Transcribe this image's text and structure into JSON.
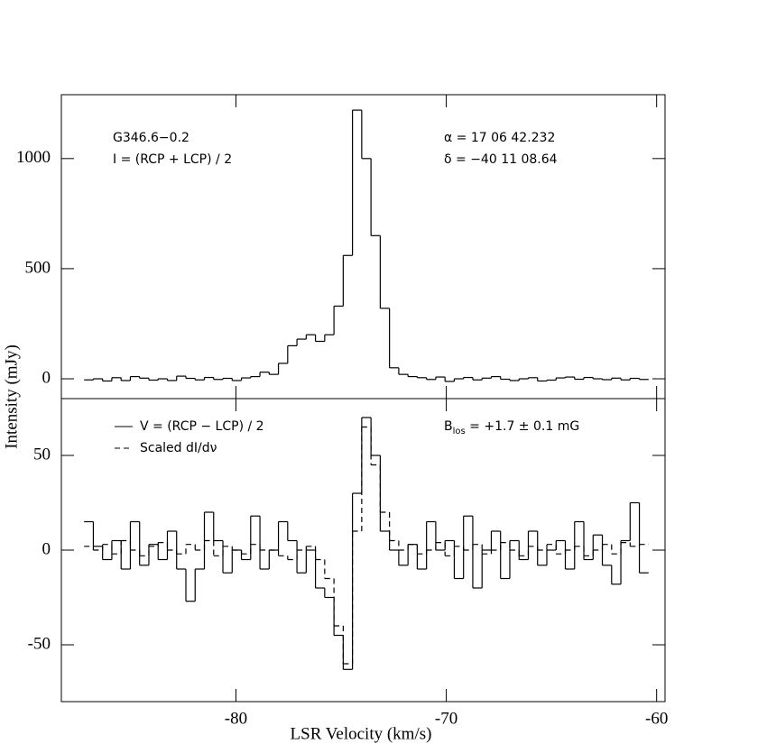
{
  "chart_data": [
    {
      "type": "step",
      "ylabel": "Intensity (mJy)",
      "annotations": [
        "G346.6−0.2",
        "I = (RCP + LCP) / 2",
        "α = 17 06 42.232",
        "δ = −40 11 08.64"
      ],
      "xlim": [
        -88.3,
        -59.6
      ],
      "ylim": [
        -90,
        1290
      ],
      "yticks": [
        0,
        500,
        1000
      ],
      "x": [
        -87.0,
        -86.56,
        -86.12,
        -85.68,
        -85.24,
        -84.8,
        -84.36,
        -83.92,
        -83.48,
        -83.04,
        -82.6,
        -82.16,
        -81.72,
        -81.28,
        -80.84,
        -80.4,
        -79.96,
        -79.52,
        -79.08,
        -78.64,
        -78.2,
        -77.76,
        -77.32,
        -76.88,
        -76.44,
        -76.0,
        -75.56,
        -75.12,
        -74.68,
        -74.24,
        -73.8,
        -73.36,
        -72.92,
        -72.48,
        -72.04,
        -71.6,
        -71.16,
        -70.72,
        -70.28,
        -69.84,
        -69.4,
        -68.96,
        -68.52,
        -68.08,
        -67.64,
        -67.2,
        -66.76,
        -66.32,
        -65.88,
        -65.44,
        -65.0,
        -64.56,
        -64.12,
        -63.68,
        -63.24,
        -62.8,
        -62.36,
        -61.92,
        -61.48,
        -61.04,
        -60.6
      ],
      "series": [
        {
          "color": "#000000",
          "dash": "solid",
          "values": [
            -5,
            0,
            -10,
            5,
            -8,
            10,
            3,
            -6,
            0,
            -8,
            12,
            2,
            -5,
            6,
            -3,
            2,
            -8,
            4,
            10,
            30,
            20,
            70,
            150,
            180,
            200,
            170,
            200,
            330,
            560,
            1220,
            1000,
            650,
            320,
            50,
            20,
            10,
            5,
            -3,
            8,
            -12,
            0,
            6,
            -5,
            3,
            10,
            -2,
            -8,
            0,
            5,
            -10,
            -6,
            4,
            8,
            -2,
            6,
            0,
            -4,
            3,
            -5,
            2,
            -3
          ]
        }
      ]
    },
    {
      "type": "step",
      "xlabel": "LSR Velocity (km/s)",
      "annotation": {
        "text": "B",
        "subscript": "los",
        "suffix": " = +1.7 ± 0.1 mG"
      },
      "xlim": [
        -88.3,
        -59.6
      ],
      "xticks": [
        -80,
        -70,
        -60
      ],
      "ylim": [
        -80,
        80
      ],
      "yticks": [
        -50,
        0,
        50
      ],
      "x": [
        -87.0,
        -86.56,
        -86.12,
        -85.68,
        -85.24,
        -84.8,
        -84.36,
        -83.92,
        -83.48,
        -83.04,
        -82.6,
        -82.16,
        -81.72,
        -81.28,
        -80.84,
        -80.4,
        -79.96,
        -79.52,
        -79.08,
        -78.64,
        -78.2,
        -77.76,
        -77.32,
        -76.88,
        -76.44,
        -76.0,
        -75.56,
        -75.12,
        -74.68,
        -74.24,
        -73.8,
        -73.36,
        -72.92,
        -72.48,
        -72.04,
        -71.6,
        -71.16,
        -70.72,
        -70.28,
        -69.84,
        -69.4,
        -68.96,
        -68.52,
        -68.08,
        -67.64,
        -67.2,
        -66.76,
        -66.32,
        -65.88,
        -65.44,
        -65.0,
        -64.56,
        -64.12,
        -63.68,
        -63.24,
        -62.8,
        -62.36,
        -61.92,
        -61.48,
        -61.04,
        -60.6
      ],
      "series": [
        {
          "name": "V = (RCP − LCP) / 2",
          "color": "#000000",
          "dash": "solid",
          "values": [
            15,
            2,
            -5,
            5,
            -10,
            15,
            -8,
            3,
            -5,
            10,
            -10,
            -27,
            -10,
            20,
            5,
            -12,
            0,
            -5,
            18,
            -10,
            0,
            15,
            5,
            -12,
            0,
            -20,
            -25,
            -45,
            -63,
            30,
            70,
            50,
            10,
            0,
            -8,
            3,
            -10,
            15,
            0,
            5,
            -15,
            18,
            -20,
            0,
            10,
            -15,
            5,
            -5,
            10,
            -8,
            0,
            5,
            -10,
            15,
            -5,
            8,
            -8,
            -18,
            5,
            25,
            -12
          ]
        },
        {
          "name": "Scaled dI/dν",
          "color": "#000000",
          "dash": "dashed",
          "values": [
            2,
            0,
            3,
            -2,
            5,
            0,
            -3,
            2,
            4,
            0,
            -2,
            3,
            0,
            5,
            -3,
            2,
            0,
            -2,
            3,
            0,
            0,
            -3,
            -5,
            0,
            2,
            -5,
            -15,
            -40,
            -60,
            10,
            65,
            45,
            20,
            5,
            0,
            3,
            -2,
            0,
            4,
            -3,
            2,
            0,
            3,
            -2,
            0,
            4,
            0,
            -3,
            2,
            0,
            3,
            -2,
            0,
            2,
            -3,
            0,
            3,
            -2,
            4,
            2,
            3
          ]
        }
      ]
    }
  ]
}
